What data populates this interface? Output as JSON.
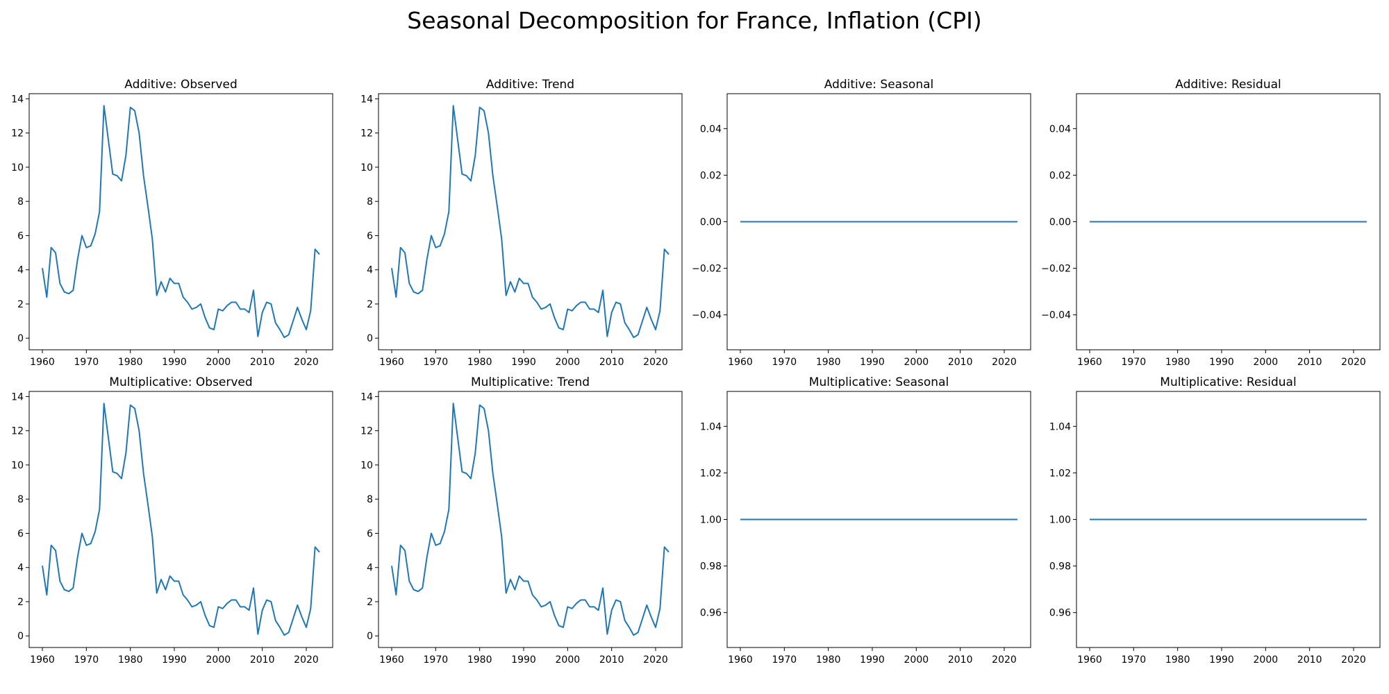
{
  "figure": {
    "title": "Seasonal Decomposition for France, Inflation (CPI)",
    "line_color": "#1f77b4"
  },
  "chart_data": [
    {
      "type": "line",
      "title": "Additive: Observed",
      "xlim": [
        1957,
        2026
      ],
      "xticks": [
        1960,
        1970,
        1980,
        1990,
        2000,
        2010,
        2020
      ],
      "ylim": [
        -0.68,
        14.3
      ],
      "yticks": [
        0,
        2,
        4,
        6,
        8,
        10,
        12,
        14
      ],
      "ytick_labels": [
        "0",
        "2",
        "4",
        "6",
        "8",
        "10",
        "12",
        "14"
      ],
      "series": [
        {
          "x": [],
          "values": [],
          "source": "observed"
        }
      ]
    },
    {
      "type": "line",
      "title": "Additive: Trend",
      "xlim": [
        1957,
        2026
      ],
      "xticks": [
        1960,
        1970,
        1980,
        1990,
        2000,
        2010,
        2020
      ],
      "ylim": [
        -0.68,
        14.3
      ],
      "yticks": [
        0,
        2,
        4,
        6,
        8,
        10,
        12,
        14
      ],
      "ytick_labels": [
        "0",
        "2",
        "4",
        "6",
        "8",
        "10",
        "12",
        "14"
      ],
      "series": [
        {
          "x": [],
          "values": [],
          "source": "observed"
        }
      ]
    },
    {
      "type": "line",
      "title": "Additive: Seasonal",
      "xlim": [
        1957,
        2026
      ],
      "xticks": [
        1960,
        1970,
        1980,
        1990,
        2000,
        2010,
        2020
      ],
      "ylim": [
        -0.055,
        0.055
      ],
      "yticks": [
        -0.04,
        -0.02,
        0,
        0.02,
        0.04
      ],
      "ytick_labels": [
        "−0.04",
        "−0.02",
        "0.00",
        "0.02",
        "0.04"
      ],
      "series": [
        {
          "x": [],
          "values": [],
          "constant": 0
        }
      ]
    },
    {
      "type": "line",
      "title": "Additive: Residual",
      "xlim": [
        1957,
        2026
      ],
      "xticks": [
        1960,
        1970,
        1980,
        1990,
        2000,
        2010,
        2020
      ],
      "ylim": [
        -0.055,
        0.055
      ],
      "yticks": [
        -0.04,
        -0.02,
        0,
        0.02,
        0.04
      ],
      "ytick_labels": [
        "−0.04",
        "−0.02",
        "0.00",
        "0.02",
        "0.04"
      ],
      "series": [
        {
          "x": [],
          "values": [],
          "constant": 0
        }
      ]
    },
    {
      "type": "line",
      "title": "Multiplicative: Observed",
      "xlim": [
        1957,
        2026
      ],
      "xticks": [
        1960,
        1970,
        1980,
        1990,
        2000,
        2010,
        2020
      ],
      "ylim": [
        -0.68,
        14.3
      ],
      "yticks": [
        0,
        2,
        4,
        6,
        8,
        10,
        12,
        14
      ],
      "ytick_labels": [
        "0",
        "2",
        "4",
        "6",
        "8",
        "10",
        "12",
        "14"
      ],
      "series": [
        {
          "x": [],
          "values": [],
          "source": "observed"
        }
      ]
    },
    {
      "type": "line",
      "title": "Multiplicative: Trend",
      "xlim": [
        1957,
        2026
      ],
      "xticks": [
        1960,
        1970,
        1980,
        1990,
        2000,
        2010,
        2020
      ],
      "ylim": [
        -0.68,
        14.3
      ],
      "yticks": [
        0,
        2,
        4,
        6,
        8,
        10,
        12,
        14
      ],
      "ytick_labels": [
        "0",
        "2",
        "4",
        "6",
        "8",
        "10",
        "12",
        "14"
      ],
      "series": [
        {
          "x": [],
          "values": [],
          "source": "observed"
        }
      ]
    },
    {
      "type": "line",
      "title": "Multiplicative: Seasonal",
      "xlim": [
        1957,
        2026
      ],
      "xticks": [
        1960,
        1970,
        1980,
        1990,
        2000,
        2010,
        2020
      ],
      "ylim": [
        0.945,
        1.055
      ],
      "yticks": [
        0.96,
        0.98,
        1.0,
        1.02,
        1.04
      ],
      "ytick_labels": [
        "0.96",
        "0.98",
        "1.00",
        "1.02",
        "1.04"
      ],
      "series": [
        {
          "x": [],
          "values": [],
          "constant": 1
        }
      ]
    },
    {
      "type": "line",
      "title": "Multiplicative: Residual",
      "xlim": [
        1957,
        2026
      ],
      "xticks": [
        1960,
        1970,
        1980,
        1990,
        2000,
        2010,
        2020
      ],
      "ylim": [
        0.945,
        1.055
      ],
      "yticks": [
        0.96,
        0.98,
        1.0,
        1.02,
        1.04
      ],
      "ytick_labels": [
        "0.96",
        "0.98",
        "1.00",
        "1.02",
        "1.04"
      ],
      "series": [
        {
          "x": [],
          "values": [],
          "constant": 1
        }
      ]
    }
  ],
  "observed": {
    "x": [
      1960,
      1961,
      1962,
      1963,
      1964,
      1965,
      1966,
      1967,
      1968,
      1969,
      1970,
      1971,
      1972,
      1973,
      1974,
      1975,
      1976,
      1977,
      1978,
      1979,
      1980,
      1981,
      1982,
      1983,
      1984,
      1985,
      1986,
      1987,
      1988,
      1989,
      1990,
      1991,
      1992,
      1993,
      1994,
      1995,
      1996,
      1997,
      1998,
      1999,
      2000,
      2001,
      2002,
      2003,
      2004,
      2005,
      2006,
      2007,
      2008,
      2009,
      2010,
      2011,
      2012,
      2013,
      2014,
      2015,
      2016,
      2017,
      2018,
      2019,
      2020,
      2021,
      2022,
      2023
    ],
    "values": [
      4.1,
      2.4,
      5.3,
      5.0,
      3.2,
      2.7,
      2.6,
      2.8,
      4.6,
      6.0,
      5.3,
      5.4,
      6.1,
      7.4,
      13.6,
      11.6,
      9.6,
      9.5,
      9.2,
      10.7,
      13.5,
      13.3,
      12.0,
      9.5,
      7.7,
      5.8,
      2.5,
      3.3,
      2.7,
      3.5,
      3.2,
      3.2,
      2.4,
      2.1,
      1.7,
      1.8,
      2.0,
      1.2,
      0.6,
      0.5,
      1.7,
      1.6,
      1.9,
      2.1,
      2.1,
      1.7,
      1.7,
      1.5,
      2.8,
      0.1,
      1.5,
      2.1,
      2.0,
      0.9,
      0.5,
      0.04,
      0.2,
      1.0,
      1.8,
      1.1,
      0.5,
      1.6,
      5.2,
      4.9
    ]
  }
}
